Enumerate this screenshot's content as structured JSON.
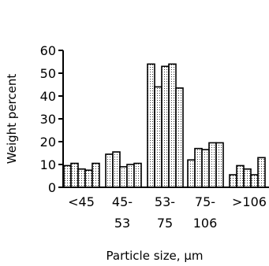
{
  "chart_data": {
    "type": "bar",
    "title": "",
    "xlabel": "Particle size, μm",
    "ylabel": "Weight percent",
    "ylim": [
      0,
      60
    ],
    "yticks": [
      0,
      10,
      20,
      30,
      40,
      50,
      60
    ],
    "grid": false,
    "legend": "none",
    "bar_fill": "dotted",
    "categories": [
      {
        "line1": "<45",
        "line2": ""
      },
      {
        "line1": "45-",
        "line2": "53"
      },
      {
        "line1": "53-",
        "line2": "75"
      },
      {
        "line1": "75-",
        "line2": "106"
      },
      {
        "line1": ">106",
        "line2": ""
      }
    ],
    "groups": [
      [
        9.5,
        10.5,
        8.0,
        7.5,
        10.5
      ],
      [
        14.5,
        15.5,
        9.0,
        10.0,
        10.5
      ],
      [
        54.0,
        44.0,
        53.0,
        54.0,
        43.5
      ],
      [
        12.0,
        17.0,
        16.5,
        19.5,
        19.5
      ],
      [
        5.5,
        9.5,
        8.0,
        5.5,
        13.0
      ]
    ]
  }
}
